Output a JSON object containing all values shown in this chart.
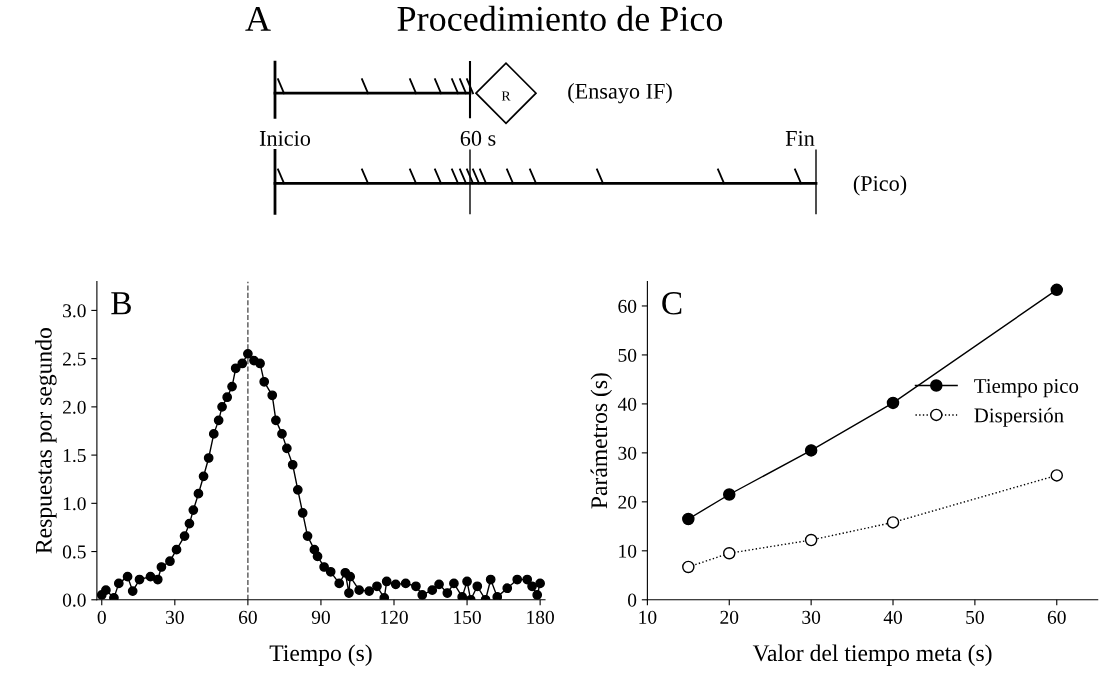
{
  "chart_data": [
    {
      "type": "other",
      "title": "Procedimiento de Pico",
      "annotations": [
        "A",
        "R",
        "(Ensayo IF)",
        "Inicio",
        "60 s",
        "Fin",
        "(Pico)"
      ]
    },
    {
      "type": "line",
      "xlabel": "Tiempo (s)",
      "ylabel": "Respuestas por segundo",
      "annotations": [
        "B"
      ],
      "xlim": [
        -2,
        182
      ],
      "xticks": [
        0,
        30,
        60,
        90,
        120,
        150,
        180
      ],
      "ylim": [
        0,
        3.3
      ],
      "yticks": [
        {
          "value": 0,
          "label": "0.0"
        },
        {
          "value": 0.5,
          "label": "0.5"
        },
        {
          "value": 1,
          "label": "1.0"
        },
        {
          "value": 1.5,
          "label": "1.5"
        },
        {
          "value": 2,
          "label": "2.0"
        },
        {
          "value": 2.5,
          "label": "2.5"
        },
        {
          "value": 3,
          "label": "3.0"
        }
      ],
      "grid": false,
      "legend": false,
      "marker": "circle",
      "line_style": "solid",
      "ref_lines": [
        {
          "axis": "x",
          "value": 60,
          "label": null,
          "color": "#555555",
          "line_style": "dashed"
        }
      ],
      "series": [
        {
          "color": "#000000",
          "x": [
            0,
            1.7,
            5,
            7,
            10.6,
            12.7,
            15.5,
            20,
            23,
            24.5,
            28,
            30.7,
            34,
            36,
            37.6,
            39.7,
            41.8,
            43.9,
            46,
            48,
            49.4,
            51.5,
            53.5,
            55,
            57.7,
            60,
            62.5,
            65,
            66.7,
            70,
            71.5,
            74,
            76,
            78.4,
            80.5,
            82.5,
            84.5,
            87.3,
            88.6,
            91.3,
            94,
            97.5,
            100,
            101.5,
            102,
            105.7,
            109.8,
            113,
            116,
            117,
            120.7,
            124.8,
            129,
            131.6,
            135.7,
            138.5,
            141.9,
            144.6,
            148,
            150,
            151.5,
            154.2,
            157.6,
            159.7,
            162.4,
            166.5,
            170.6,
            174.7,
            176.7,
            178.8,
            180
          ],
          "values": [
            0.05,
            0.1,
            0.02,
            0.17,
            0.24,
            0.09,
            0.21,
            0.24,
            0.21,
            0.34,
            0.4,
            0.52,
            0.66,
            0.79,
            0.93,
            1.1,
            1.28,
            1.47,
            1.72,
            1.86,
            2.0,
            2.1,
            2.21,
            2.4,
            2.45,
            2.55,
            2.48,
            2.45,
            2.26,
            2.12,
            1.86,
            1.72,
            1.57,
            1.4,
            1.14,
            0.9,
            0.66,
            0.52,
            0.45,
            0.34,
            0.29,
            0.17,
            0.28,
            0.07,
            0.24,
            0.1,
            0.09,
            0.14,
            0.02,
            0.19,
            0.16,
            0.17,
            0.14,
            0.05,
            0.1,
            0.16,
            0.07,
            0.17,
            0.03,
            0.19,
            0.0,
            0.14,
            0.0,
            0.21,
            0.03,
            0.12,
            0.21,
            0.21,
            0.14,
            0.05,
            0.17
          ]
        }
      ]
    },
    {
      "type": "line",
      "xlabel": "Valor del tiempo meta (s)",
      "ylabel": "Parámetros (s)",
      "annotations": [
        "C"
      ],
      "xlim": [
        10,
        65
      ],
      "xticks": [
        10,
        20,
        30,
        40,
        50,
        60
      ],
      "ylim": [
        0,
        65
      ],
      "yticks": [
        0,
        10,
        20,
        30,
        40,
        50,
        60
      ],
      "grid": false,
      "legend": "right",
      "x": [
        15,
        20,
        30,
        40,
        60
      ],
      "series": [
        {
          "name": "Tiempo pico",
          "color": "#000000",
          "marker": "circle",
          "line_style": "solid",
          "values": [
            16.5,
            21.5,
            30.5,
            40.2,
            63.3
          ]
        },
        {
          "name": "Dispersión",
          "color": "#000000",
          "marker": "circle",
          "line_style": "dotted",
          "values": [
            6.7,
            9.5,
            12.2,
            15.8,
            25.4
          ]
        }
      ]
    }
  ]
}
